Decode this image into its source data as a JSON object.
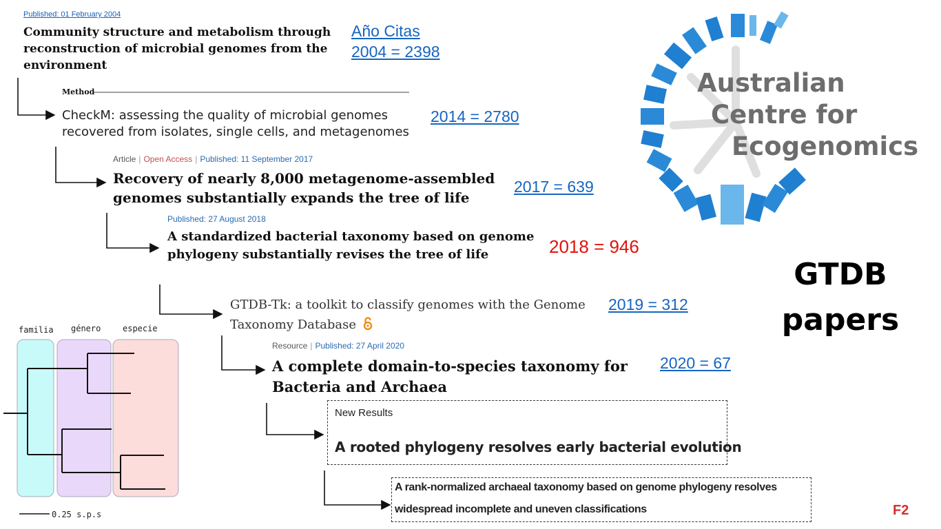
{
  "citations_header": "Año    Citas",
  "papers": [
    {
      "published": "Published: 01 February 2004",
      "title": "Community structure and metabolism through reconstruction of microbial genomes from the environment",
      "citations": "2004 = 2398"
    },
    {
      "section": "Method",
      "title": "CheckM: assessing the quality of microbial genomes recovered from isolates, single cells, and metagenomes",
      "citations": "2014 = 2780"
    },
    {
      "meta": {
        "type": "Article",
        "access": "Open Access",
        "published": "Published: 11 September 2017"
      },
      "title": "Recovery of nearly 8,000 metagenome-assembled genomes substantially expands the tree of life",
      "citations": "2017 = 639"
    },
    {
      "published": "Published: 27 August 2018",
      "title": "A standardized bacterial taxonomy based on genome phylogeny substantially revises the tree of life",
      "citations": "2018 = 946"
    },
    {
      "title": "GTDB-Tk: a toolkit to classify genomes with the Genome Taxonomy Database",
      "citations": "2019 = 312"
    },
    {
      "meta": {
        "type": "Resource",
        "published": "Published: 27 April 2020"
      },
      "title": "A complete domain-to-species taxonomy for Bacteria and Archaea",
      "citations": "2020 = 67"
    },
    {
      "label": "New Results",
      "title": "A rooted phylogeny resolves early bacterial evolution"
    },
    {
      "title_line1": "A rank-normalized archaeal taxonomy based on genome phylogeny resolves",
      "title_line2": "widespread incomplete and uneven classifications"
    }
  ],
  "logo": {
    "line1": "Australian",
    "line2": "Centre for",
    "line3": "Ecogenomics"
  },
  "gtdb_label": {
    "line1": "GTDB",
    "line2": "papers"
  },
  "slide_label": "F2",
  "tree": {
    "labels": [
      "familia",
      "género",
      "especie"
    ],
    "scale": "0.25 s.p.s"
  },
  "colors": {
    "link_blue": "#1565c0",
    "highlight_red": "#e3120b",
    "logo_blue_dark": "#1f7fd1",
    "logo_blue_light": "#6bb6ea",
    "familia": "#c8fafa",
    "genero": "#ead8fb",
    "especie": "#fddcdc"
  }
}
